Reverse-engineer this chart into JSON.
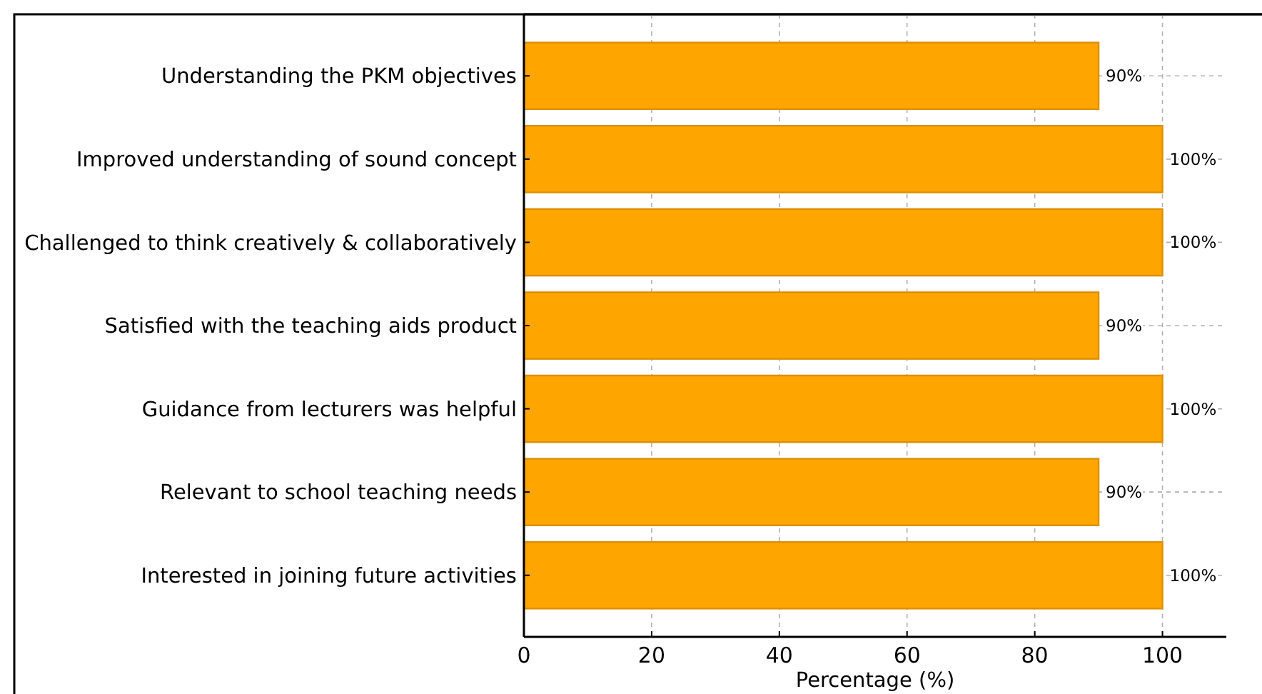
{
  "chart_data": {
    "type": "bar",
    "orientation": "horizontal",
    "xlabel": "Percentage (%)",
    "categories": [
      "Understanding the PKM objectives",
      "Improved understanding of sound concept",
      "Challenged to think creatively & collaboratively",
      "Satisfied with the teaching aids product",
      "Guidance from lecturers was helpful",
      "Relevant to school teaching needs",
      "Interested in joining future activities"
    ],
    "values": [
      90,
      100,
      100,
      90,
      100,
      90,
      100
    ],
    "value_labels": [
      "90%",
      "100%",
      "100%",
      "90%",
      "100%",
      "90%",
      "100%"
    ],
    "color": "#ffa500",
    "xlim": [
      0,
      110
    ],
    "xticks": [
      0,
      20,
      40,
      60,
      80,
      100
    ],
    "grid": true
  }
}
